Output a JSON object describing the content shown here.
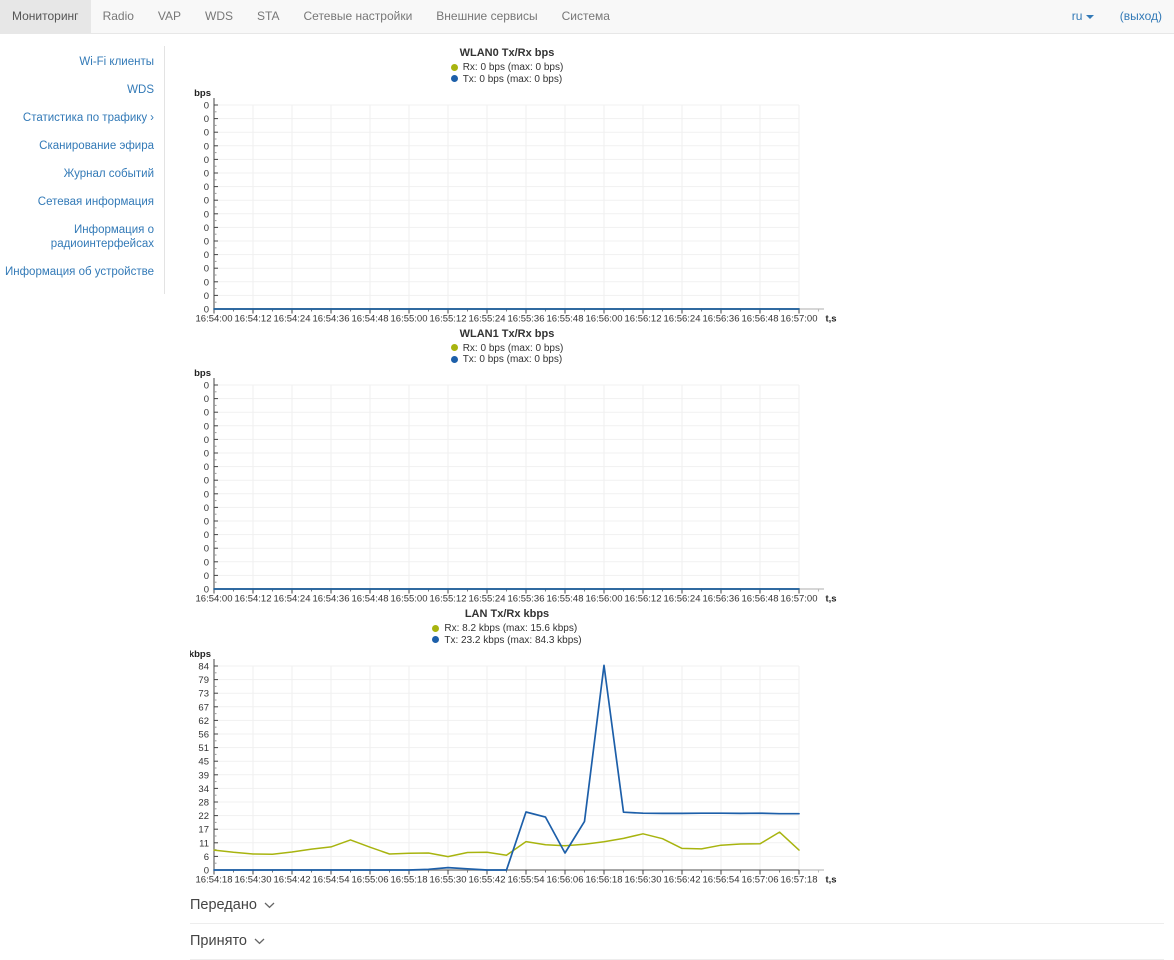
{
  "navbar": {
    "items": [
      {
        "label": "Мониторинг",
        "active": true
      },
      {
        "label": "Radio",
        "active": false
      },
      {
        "label": "VAP",
        "active": false
      },
      {
        "label": "WDS",
        "active": false
      },
      {
        "label": "STA",
        "active": false
      },
      {
        "label": "Сетевые настройки",
        "active": false
      },
      {
        "label": "Внешние сервисы",
        "active": false
      },
      {
        "label": "Система",
        "active": false
      }
    ],
    "language": "ru",
    "logout_label": "(выход)"
  },
  "sidebar": {
    "items": [
      {
        "label": "Wi-Fi клиенты",
        "active": false,
        "marker": ""
      },
      {
        "label": "WDS",
        "active": false,
        "marker": ""
      },
      {
        "label": "Статистика по трафику",
        "active": true,
        "marker": "›"
      },
      {
        "label": "Сканирование эфира",
        "active": false,
        "marker": ""
      },
      {
        "label": "Журнал событий",
        "active": false,
        "marker": ""
      },
      {
        "label": "Сетевая информация",
        "active": false,
        "marker": ""
      },
      {
        "label": "Информация о радиоинтерфейсах",
        "active": false,
        "marker": ""
      },
      {
        "label": "Информация об устройстве",
        "active": false,
        "marker": ""
      }
    ]
  },
  "sections": {
    "transmitted_label": "Передано",
    "received_label": "Принято"
  },
  "colors": {
    "rx_series": "#a8b40f",
    "tx_series": "#1d5fa9",
    "link_blue": "#337ab7",
    "grid": "#f1f1f1",
    "axis": "#444444"
  },
  "chart_data": [
    {
      "type": "line",
      "title": "WLAN0 Tx/Rx bps",
      "ylabel": "bps",
      "xlabel": "t,s",
      "ylim": [
        0,
        0
      ],
      "y_tick_labels": [
        "0",
        "0",
        "0",
        "0",
        "0",
        "0",
        "0",
        "0",
        "0",
        "0",
        "0",
        "0",
        "0",
        "0",
        "0",
        "0"
      ],
      "x_tick_labels": [
        "16:54:00",
        "16:54:12",
        "16:54:24",
        "16:54:36",
        "16:54:48",
        "16:55:00",
        "16:55:12",
        "16:55:24",
        "16:55:36",
        "16:55:48",
        "16:56:00",
        "16:56:12",
        "16:56:24",
        "16:56:36",
        "16:56:48",
        "16:57:00"
      ],
      "sample_step_seconds": 6,
      "legend": [
        {
          "label": "Rx: 0 bps (max: 0 bps)",
          "color": "#a8b40f"
        },
        {
          "label": "Tx: 0 bps (max: 0 bps)",
          "color": "#1d5fa9"
        }
      ],
      "series": [
        {
          "name": "Rx",
          "color": "#a8b40f",
          "values": [
            0,
            0,
            0,
            0,
            0,
            0,
            0,
            0,
            0,
            0,
            0,
            0,
            0,
            0,
            0,
            0,
            0,
            0,
            0,
            0,
            0,
            0,
            0,
            0,
            0,
            0,
            0,
            0,
            0,
            0,
            0
          ]
        },
        {
          "name": "Tx",
          "color": "#1d5fa9",
          "values": [
            0,
            0,
            0,
            0,
            0,
            0,
            0,
            0,
            0,
            0,
            0,
            0,
            0,
            0,
            0,
            0,
            0,
            0,
            0,
            0,
            0,
            0,
            0,
            0,
            0,
            0,
            0,
            0,
            0,
            0,
            0
          ]
        }
      ]
    },
    {
      "type": "line",
      "title": "WLAN1 Tx/Rx bps",
      "ylabel": "bps",
      "xlabel": "t,s",
      "ylim": [
        0,
        0
      ],
      "y_tick_labels": [
        "0",
        "0",
        "0",
        "0",
        "0",
        "0",
        "0",
        "0",
        "0",
        "0",
        "0",
        "0",
        "0",
        "0",
        "0",
        "0"
      ],
      "x_tick_labels": [
        "16:54:00",
        "16:54:12",
        "16:54:24",
        "16:54:36",
        "16:54:48",
        "16:55:00",
        "16:55:12",
        "16:55:24",
        "16:55:36",
        "16:55:48",
        "16:56:00",
        "16:56:12",
        "16:56:24",
        "16:56:36",
        "16:56:48",
        "16:57:00"
      ],
      "sample_step_seconds": 6,
      "legend": [
        {
          "label": "Rx: 0 bps (max: 0 bps)",
          "color": "#a8b40f"
        },
        {
          "label": "Tx: 0 bps (max: 0 bps)",
          "color": "#1d5fa9"
        }
      ],
      "series": [
        {
          "name": "Rx",
          "color": "#a8b40f",
          "values": [
            0,
            0,
            0,
            0,
            0,
            0,
            0,
            0,
            0,
            0,
            0,
            0,
            0,
            0,
            0,
            0,
            0,
            0,
            0,
            0,
            0,
            0,
            0,
            0,
            0,
            0,
            0,
            0,
            0,
            0,
            0
          ]
        },
        {
          "name": "Tx",
          "color": "#1d5fa9",
          "values": [
            0,
            0,
            0,
            0,
            0,
            0,
            0,
            0,
            0,
            0,
            0,
            0,
            0,
            0,
            0,
            0,
            0,
            0,
            0,
            0,
            0,
            0,
            0,
            0,
            0,
            0,
            0,
            0,
            0,
            0,
            0
          ]
        }
      ]
    },
    {
      "type": "line",
      "title": "LAN Tx/Rx kbps",
      "ylabel": "kbps",
      "xlabel": "t,s",
      "ylim": [
        0,
        84
      ],
      "y_tick_labels": [
        "84",
        "79",
        "73",
        "67",
        "62",
        "56",
        "51",
        "45",
        "39",
        "34",
        "28",
        "22",
        "17",
        "11",
        "6",
        "0"
      ],
      "x_tick_labels": [
        "16:54:18",
        "16:54:30",
        "16:54:42",
        "16:54:54",
        "16:55:06",
        "16:55:18",
        "16:55:30",
        "16:55:42",
        "16:55:54",
        "16:56:06",
        "16:56:18",
        "16:56:30",
        "16:56:42",
        "16:56:54",
        "16:57:06",
        "16:57:18"
      ],
      "sample_step_seconds": 6,
      "legend": [
        {
          "label": "Rx: 8.2 kbps (max: 15.6 kbps)",
          "color": "#a8b40f"
        },
        {
          "label": "Tx: 23.2 kbps (max: 84.3 kbps)",
          "color": "#1d5fa9"
        }
      ],
      "series": [
        {
          "name": "Rx",
          "color": "#a8b40f",
          "values": [
            8.2,
            7.3,
            6.6,
            6.5,
            7.4,
            8.6,
            9.5,
            12.4,
            9.4,
            6.6,
            6.9,
            7.0,
            5.5,
            7.2,
            7.3,
            6.1,
            11.7,
            10.4,
            10.0,
            10.6,
            11.6,
            13.0,
            14.9,
            12.9,
            8.9,
            8.7,
            10.2,
            10.7,
            10.8,
            15.6,
            8.2
          ]
        },
        {
          "name": "Tx",
          "color": "#1d5fa9",
          "values": [
            0,
            0,
            0,
            0,
            0,
            0,
            0,
            0,
            0,
            0,
            0,
            0.3,
            1.0,
            0.5,
            0,
            0,
            23.9,
            21.8,
            7.0,
            20.0,
            84.3,
            23.8,
            23.4,
            23.3,
            23.3,
            23.4,
            23.4,
            23.3,
            23.4,
            23.2,
            23.2
          ]
        }
      ]
    }
  ]
}
